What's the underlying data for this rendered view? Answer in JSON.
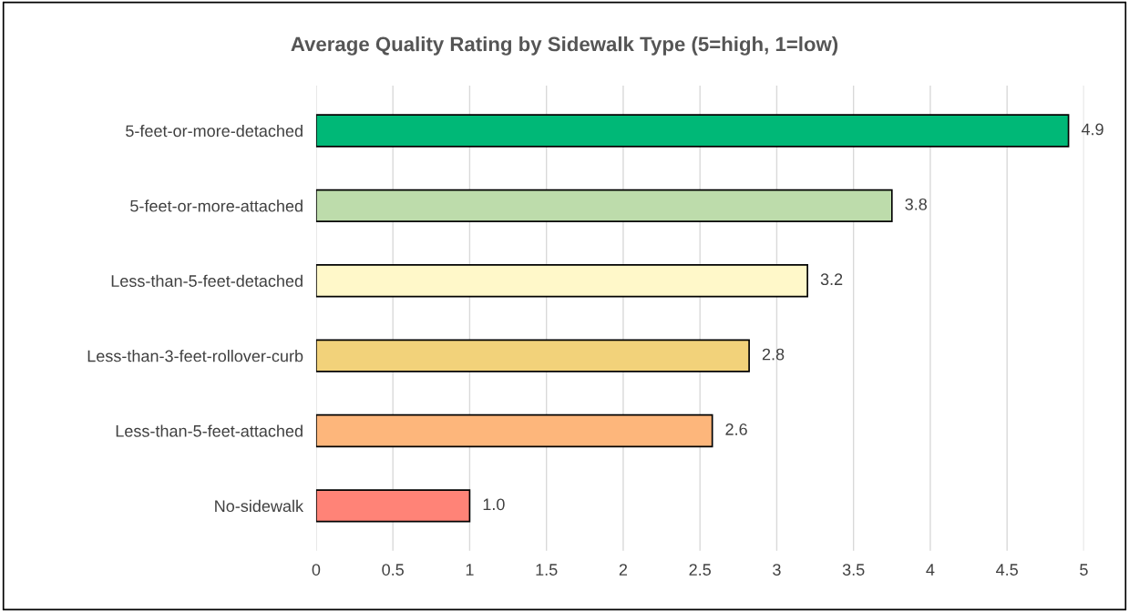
{
  "chart_data": {
    "type": "bar",
    "orientation": "horizontal",
    "title": "Average Quality Rating by Sidewalk Type (5=high, 1=low)",
    "categories": [
      "5-feet-or-more-detached",
      "5-feet-or-more-attached",
      "Less-than-5-feet-detached",
      "Less-than-3-feet-rollover-curb",
      "Less-than-5-feet-attached",
      "No-sidewalk"
    ],
    "values": [
      4.9,
      3.75,
      3.2,
      2.82,
      2.58,
      1.0
    ],
    "value_labels": [
      "4.9",
      "3.8",
      "3.2",
      "2.8",
      "2.6",
      "1.0"
    ],
    "colors": [
      "#00b877",
      "#bddcab",
      "#fff8c9",
      "#f2d27a",
      "#fdb67b",
      "#ff8377"
    ],
    "xlim": [
      0,
      5
    ],
    "xticks": [
      0,
      0.5,
      1,
      1.5,
      2,
      2.5,
      3,
      3.5,
      4,
      4.5,
      5
    ],
    "grid": "x"
  }
}
